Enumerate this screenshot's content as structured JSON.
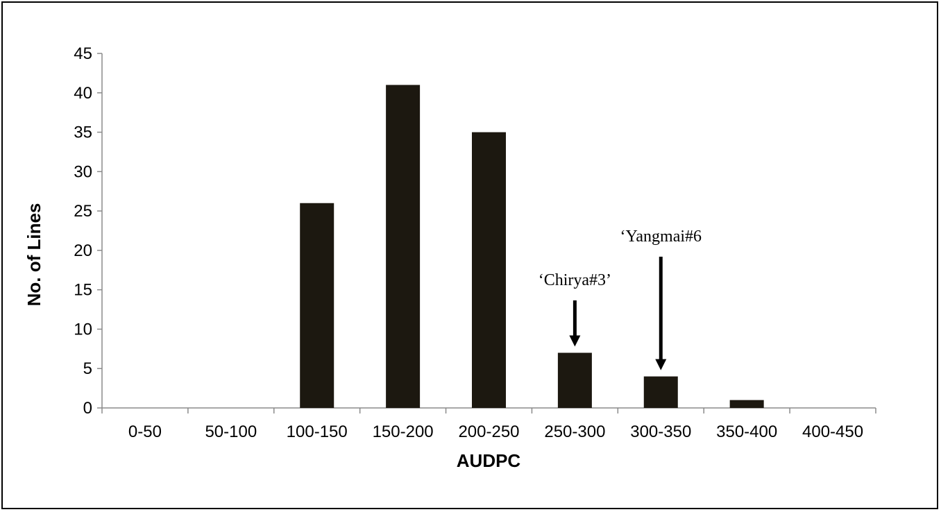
{
  "chart_data": {
    "type": "bar",
    "title": "",
    "xlabel": "AUDPC",
    "ylabel": "No. of Lines",
    "categories": [
      "0-50",
      "50-100",
      "100-150",
      "150-200",
      "200-250",
      "250-300",
      "300-350",
      "350-400",
      "400-450"
    ],
    "values": [
      0,
      0,
      26,
      41,
      35,
      7,
      4,
      1,
      0
    ],
    "ylim": [
      0,
      45
    ],
    "yticks": [
      0,
      5,
      10,
      15,
      20,
      25,
      30,
      35,
      40,
      45
    ],
    "grid": false,
    "legend": "none",
    "bar_color": "#1c1810",
    "annotations": [
      {
        "text": "‘Chirya#3’",
        "category": "250-300"
      },
      {
        "text": "‘Yangmai#6",
        "category": "300-350"
      }
    ]
  }
}
